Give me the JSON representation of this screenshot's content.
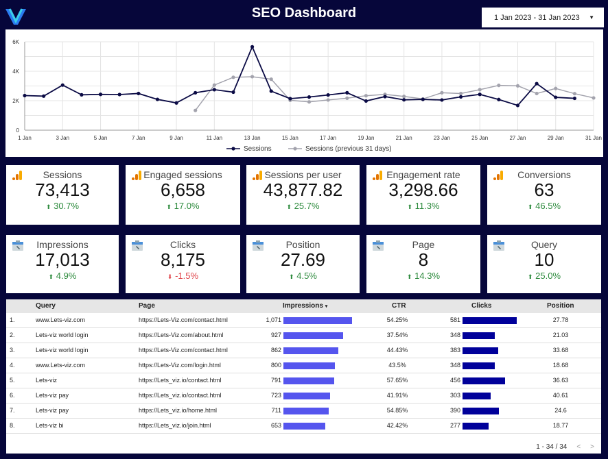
{
  "header": {
    "title": "SEO Dashboard",
    "date_range": "1 Jan 2023 - 31 Jan 2023"
  },
  "chart_data": {
    "type": "line",
    "x": [
      "1 Jan",
      "2 Jan",
      "3 Jan",
      "4 Jan",
      "5 Jan",
      "6 Jan",
      "7 Jan",
      "8 Jan",
      "9 Jan",
      "10 Jan",
      "11 Jan",
      "12 Jan",
      "13 Jan",
      "14 Jan",
      "15 Jan",
      "16 Jan",
      "17 Jan",
      "18 Jan",
      "19 Jan",
      "20 Jan",
      "21 Jan",
      "22 Jan",
      "23 Jan",
      "24 Jan",
      "25 Jan",
      "26 Jan",
      "27 Jan",
      "28 Jan",
      "29 Jan",
      "30 Jan",
      "31 Jan"
    ],
    "x_ticks": [
      "1 Jan",
      "3 Jan",
      "5 Jan",
      "7 Jan",
      "9 Jan",
      "11 Jan",
      "13 Jan",
      "15 Jan",
      "17 Jan",
      "19 Jan",
      "21 Jan",
      "23 Jan",
      "25 Jan",
      "27 Jan",
      "29 Jan",
      "31 Jan"
    ],
    "y_ticks": [
      "0",
      "2K",
      "4K",
      "6K"
    ],
    "ylim": [
      0,
      6000
    ],
    "grid": true,
    "legend": "bottom",
    "series": [
      {
        "name": "Sessions",
        "color": "#0b0b45",
        "values": [
          2350,
          2310,
          3060,
          2400,
          2430,
          2420,
          2490,
          2090,
          1850,
          2540,
          2750,
          2580,
          5660,
          2650,
          2140,
          2250,
          2390,
          2540,
          1980,
          2280,
          2060,
          2090,
          2050,
          2260,
          2430,
          2080,
          1680,
          3160,
          2230,
          2160,
          null
        ]
      },
      {
        "name": "Sessions (previous 31 days)",
        "color": "#a3a3ad",
        "values": [
          null,
          null,
          null,
          null,
          null,
          null,
          null,
          null,
          null,
          1340,
          3060,
          3590,
          3630,
          3460,
          2030,
          1920,
          2050,
          2170,
          2340,
          2430,
          2290,
          2120,
          2540,
          2490,
          2750,
          3040,
          3010,
          2490,
          2830,
          2480,
          2190
        ]
      }
    ]
  },
  "kpis": [
    {
      "label": "Sessions",
      "value": "73,413",
      "change": "30.7%",
      "dir": "up",
      "icon": "analytics-icon"
    },
    {
      "label": "Engaged sessions",
      "value": "6,658",
      "change": "17.0%",
      "dir": "up",
      "icon": "analytics-icon"
    },
    {
      "label": "Sessions per user",
      "value": "43,877.82",
      "change": "25.7%",
      "dir": "up",
      "icon": "analytics-icon"
    },
    {
      "label": "Engagement rate",
      "value": "3,298.66",
      "change": "11.3%",
      "dir": "up",
      "icon": "analytics-icon"
    },
    {
      "label": "Conversions",
      "value": "63",
      "change": "46.5%",
      "dir": "up",
      "icon": "analytics-icon"
    },
    {
      "label": "Impressions",
      "value": "17,013",
      "change": "4.9%",
      "dir": "up",
      "icon": "search-console-icon"
    },
    {
      "label": "Clicks",
      "value": "8,175",
      "change": "-1.5%",
      "dir": "down",
      "icon": "search-console-icon"
    },
    {
      "label": "Position",
      "value": "27.69",
      "change": "4.5%",
      "dir": "up",
      "icon": "search-console-icon"
    },
    {
      "label": "Page",
      "value": "8",
      "change": "14.3%",
      "dir": "up",
      "icon": "search-console-icon"
    },
    {
      "label": "Query",
      "value": "10",
      "change": "25.0%",
      "dir": "up",
      "icon": "search-console-icon"
    }
  ],
  "table": {
    "headers": {
      "query": "Query",
      "page": "Page",
      "impressions": "Impressions",
      "ctr": "CTR",
      "clicks": "Clicks",
      "position": "Position"
    },
    "sort_indicator": "▾",
    "impression_bar_color": "#5555ee",
    "clicks_bar_color": "#00009a",
    "rows": [
      {
        "n": "1.",
        "query": "www.Lets-viz.com",
        "page": "https://Lets-Viz.com/contact.html",
        "impressions": "1,071",
        "imp": 1071,
        "ctr": "54.25%",
        "clicks": "581",
        "clk": 581,
        "position": "27.78"
      },
      {
        "n": "2.",
        "query": "Lets-viz world login",
        "page": "https://Lets-Viz.com/about.html",
        "impressions": "927",
        "imp": 927,
        "ctr": "37.54%",
        "clicks": "348",
        "clk": 348,
        "position": "21.03"
      },
      {
        "n": "3.",
        "query": "Lets-viz world login",
        "page": "https://Lets-Viz.com/contact.html",
        "impressions": "862",
        "imp": 862,
        "ctr": "44.43%",
        "clicks": "383",
        "clk": 383,
        "position": "33.68"
      },
      {
        "n": "4.",
        "query": "www.Lets-viz.com",
        "page": "https://Lets-Viz.com/login.html",
        "impressions": "800",
        "imp": 800,
        "ctr": "43.5%",
        "clicks": "348",
        "clk": 348,
        "position": "18.68"
      },
      {
        "n": "5.",
        "query": "Lets-viz",
        "page": "https://Lets_viz.io/contact.html",
        "impressions": "791",
        "imp": 791,
        "ctr": "57.65%",
        "clicks": "456",
        "clk": 456,
        "position": "36.63"
      },
      {
        "n": "6.",
        "query": "Lets-viz pay",
        "page": "https://Lets_viz.io/contact.html",
        "impressions": "723",
        "imp": 723,
        "ctr": "41.91%",
        "clicks": "303",
        "clk": 303,
        "position": "40.61"
      },
      {
        "n": "7.",
        "query": "Lets-viz pay",
        "page": "https://Lets_viz.io/home.html",
        "impressions": "711",
        "imp": 711,
        "ctr": "54.85%",
        "clicks": "390",
        "clk": 390,
        "position": "24.6"
      },
      {
        "n": "8.",
        "query": "Lets-viz bi",
        "page": "https://Lets_viz.io/join.html",
        "impressions": "653",
        "imp": 653,
        "ctr": "42.42%",
        "clicks": "277",
        "clk": 277,
        "position": "18.77"
      }
    ],
    "pagination": "1 - 34 / 34"
  }
}
